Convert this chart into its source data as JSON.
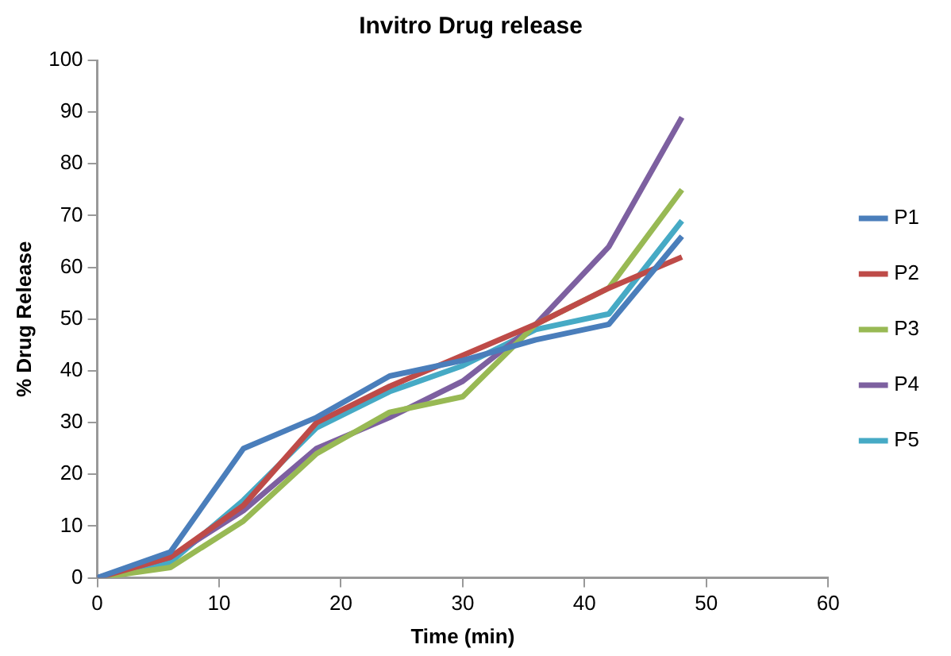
{
  "chart_data": {
    "type": "line",
    "title": "Invitro Drug release",
    "xlabel": "Time (min)",
    "ylabel": "% Drug Release",
    "x": [
      0,
      6,
      12,
      18,
      24,
      30,
      36,
      42,
      48
    ],
    "series": [
      {
        "name": "P1",
        "color": "#4a7ebb",
        "values": [
          0,
          5,
          25,
          31,
          39,
          42,
          46,
          49,
          66
        ]
      },
      {
        "name": "P2",
        "color": "#be4b48",
        "values": [
          0,
          4,
          14,
          30,
          37,
          43,
          49,
          56,
          62
        ]
      },
      {
        "name": "P3",
        "color": "#98b954",
        "values": [
          0,
          2,
          11,
          24,
          32,
          35,
          49,
          56,
          75
        ]
      },
      {
        "name": "P4",
        "color": "#7d60a0",
        "values": [
          0,
          4,
          13,
          25,
          31,
          38,
          49,
          64,
          89
        ]
      },
      {
        "name": "P5",
        "color": "#46aac5",
        "values": [
          0,
          3,
          15,
          29,
          36,
          41,
          48,
          51,
          69
        ]
      }
    ],
    "xlim": [
      0,
      60
    ],
    "xticks": [
      0,
      10,
      20,
      30,
      40,
      50,
      60
    ],
    "ylim": [
      0,
      100
    ],
    "yticks": [
      0,
      10,
      20,
      30,
      40,
      50,
      60,
      70,
      80,
      90,
      100
    ],
    "grid": false,
    "legend": "right",
    "marker": "none",
    "line_style": "solid"
  }
}
